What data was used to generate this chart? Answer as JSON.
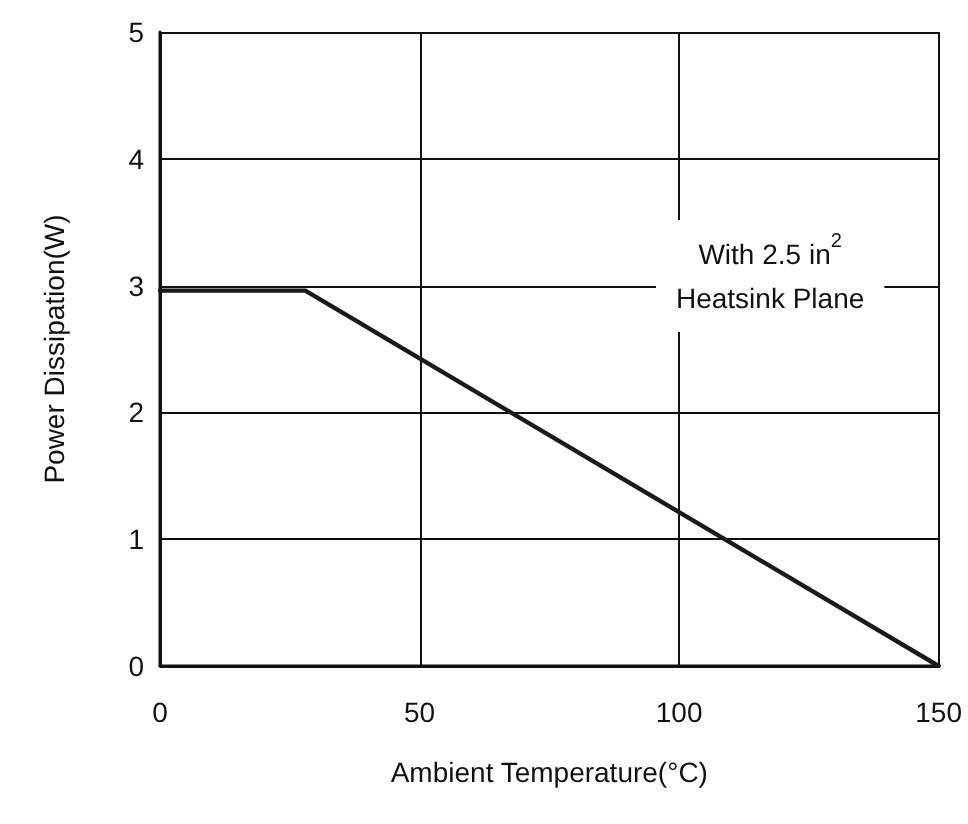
{
  "chart_data": {
    "type": "line",
    "xlabel": "Ambient Temperature(°C)",
    "ylabel": "Power Dissipation(W)",
    "x": [
      0,
      28,
      150
    ],
    "series": [
      {
        "color": "#1a1a1a",
        "values": [
          2.96,
          2.96,
          0
        ]
      }
    ],
    "xlim": [
      0,
      150
    ],
    "xticks": [
      0,
      50,
      100,
      150
    ],
    "ylim": [
      0,
      5
    ],
    "yticks": [
      0,
      1,
      2,
      3,
      4,
      5
    ],
    "grid": true,
    "marker": "none",
    "line_style": "solid",
    "annotations": [
      "With 2.5 in$^{2}$\nHeatsink Plane"
    ]
  }
}
